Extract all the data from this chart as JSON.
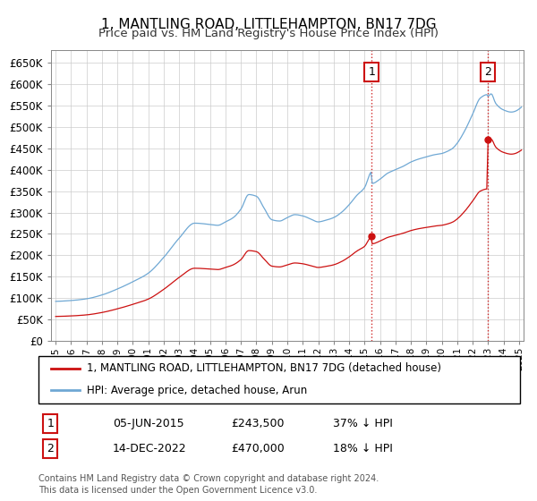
{
  "title": "1, MANTLING ROAD, LITTLEHAMPTON, BN17 7DG",
  "subtitle": "Price paid vs. HM Land Registry's House Price Index (HPI)",
  "legend_line1": "1, MANTLING ROAD, LITTLEHAMPTON, BN17 7DG (detached house)",
  "legend_line2": "HPI: Average price, detached house, Arun",
  "annotation1_label": "1",
  "annotation1_date": "05-JUN-2015",
  "annotation1_price": "£243,500",
  "annotation1_hpi": "37% ↓ HPI",
  "annotation2_label": "2",
  "annotation2_date": "14-DEC-2022",
  "annotation2_price": "£470,000",
  "annotation2_hpi": "18% ↓ HPI",
  "footer": "Contains HM Land Registry data © Crown copyright and database right 2024.\nThis data is licensed under the Open Government Licence v3.0.",
  "hpi_color": "#6fa8d4",
  "paid_color": "#cc1111",
  "grid_color": "#cccccc",
  "ylim": [
    0,
    680000
  ],
  "yticks": [
    0,
    50000,
    100000,
    150000,
    200000,
    250000,
    300000,
    350000,
    400000,
    450000,
    500000,
    550000,
    600000,
    650000
  ],
  "sale1_x": 2015.46,
  "sale1_y": 243500,
  "sale2_x": 2022.96,
  "sale2_y": 470000,
  "xlim_left": 1994.7,
  "xlim_right": 2025.3
}
